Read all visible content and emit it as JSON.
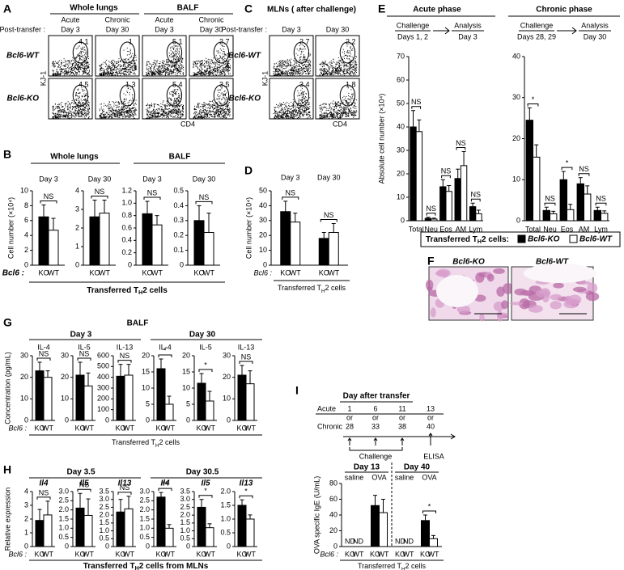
{
  "figure": {
    "letters": [
      "A",
      "B",
      "C",
      "D",
      "E",
      "F",
      "G",
      "H",
      "I"
    ],
    "A": {
      "tissues": [
        "Whole lungs",
        "BALF"
      ],
      "phases": [
        "Acute",
        "Chronic",
        "Acute",
        "Chronic"
      ],
      "post_transfer": "Post-transfer :",
      "days": [
        "Day 3",
        "Day 30",
        "Day 3",
        "Day 30"
      ],
      "rows": [
        "Bcl6-WT",
        "Bcl6-KO"
      ],
      "gates": [
        [
          4.1,
          1.0,
          5.1,
          2.7
        ],
        [
          4.5,
          1.3,
          5.4,
          3.5
        ]
      ],
      "ylabel": "KJ-1",
      "xlabel": "CD4"
    },
    "C": {
      "title": "MLNs ( after challenge)",
      "post_transfer": "Post-transfer :",
      "days": [
        "Day 3",
        "Day 30"
      ],
      "rows": [
        "Bcl6-WT",
        "Bcl6-KO"
      ],
      "gates": [
        [
          2.7,
          2.2
        ],
        [
          3.4,
          1.8
        ]
      ],
      "ylabel": "KJ-1",
      "xlabel": "CD4"
    },
    "B": {
      "tissues": [
        "Whole lungs",
        "BALF"
      ],
      "row": "Bcl6 :",
      "footer": {
        "text": "Transferred T",
        "sub": "H",
        "tail": "2 cells"
      }
    },
    "D": {
      "row": "Bcl6 :",
      "footer": {
        "text": "Transferred T",
        "sub": "H",
        "tail": "2 cells"
      }
    },
    "E": {
      "phases": [
        "Acute phase",
        "Chronic phase"
      ],
      "schemes": [
        {
          "challenge": "Challenge",
          "challenge_days": "Days 1, 2",
          "analysis": "Analysis",
          "analysis_day": "Day 3"
        },
        {
          "challenge": "Challenge",
          "challenge_days": "Days 28, 29",
          "analysis": "Analysis",
          "analysis_day": "Day 30"
        }
      ],
      "legend_title": {
        "text": "Transferred T",
        "sub": "H",
        "tail": "2 cells:"
      }
    },
    "F": {
      "labels": [
        "Bcl6-KO",
        "Bcl6-WT"
      ]
    },
    "G": {
      "title": "BALF",
      "days": [
        "Day 3",
        "Day 30"
      ],
      "row": "Bcl6 :",
      "footer": {
        "text": "Transferred T",
        "sub": "H",
        "tail": "2 cells"
      }
    },
    "H": {
      "days": [
        "Day 3.5",
        "Day 30.5"
      ],
      "row": "Bcl6 :",
      "footer": {
        "text": "Transferred T",
        "sub": "H",
        "tail": "2 cells from MLNs"
      }
    },
    "I": {
      "timeline_title": "Day after transfer",
      "rows": [
        "Acute",
        "Chronic"
      ],
      "acute_days": [
        "1",
        "6",
        "11",
        "13"
      ],
      "chronic_days": [
        "28",
        "33",
        "38",
        "40"
      ],
      "or": "or",
      "challenge": "Challenge",
      "elisa": "ELISA",
      "row": "Bcl6 :",
      "footer": {
        "text": "Transferred T",
        "sub": "H",
        "tail": "2 cells"
      }
    }
  },
  "chart_data": [
    {
      "type": "bar",
      "title": "Day 3",
      "ylabel": "Cell number (×10⁴)",
      "categories": [
        null
      ],
      "bar_labels": true,
      "sig": [
        "NS"
      ],
      "ylim": [
        0,
        10
      ],
      "yticks": [
        0,
        2,
        4,
        6,
        8,
        10
      ],
      "series": [
        {
          "name": "KO",
          "color": "#000000",
          "values": [
            6.5
          ],
          "errors": [
            1.6
          ]
        },
        {
          "name": "WT",
          "color": "#ffffff",
          "values": [
            4.7
          ],
          "errors": [
            1.6
          ]
        }
      ]
    },
    {
      "type": "bar",
      "title": "Day 30",
      "categories": [
        null
      ],
      "bar_labels": true,
      "sig": [
        "NS"
      ],
      "ylim": [
        0,
        4
      ],
      "yticks": [
        0,
        1,
        2,
        3,
        4
      ],
      "series": [
        {
          "name": "KO",
          "color": "#000000",
          "values": [
            2.6
          ],
          "errors": [
            0.9
          ]
        },
        {
          "name": "WT",
          "color": "#ffffff",
          "values": [
            2.8
          ],
          "errors": [
            0.7
          ]
        }
      ]
    },
    {
      "type": "bar",
      "title": "Day 3",
      "categories": [
        null
      ],
      "bar_labels": true,
      "sig": [
        "NS"
      ],
      "ylim": [
        0,
        1.2
      ],
      "yticks": [
        0,
        0.2,
        0.4,
        0.6,
        0.8,
        {
          "value": 1,
          "label": "1.0"
        },
        1.2
      ],
      "series": [
        {
          "name": "KO",
          "color": "#000000",
          "values": [
            0.83
          ],
          "errors": [
            0.2
          ]
        },
        {
          "name": "WT",
          "color": "#ffffff",
          "values": [
            0.65
          ],
          "errors": [
            0.15
          ]
        }
      ]
    },
    {
      "type": "bar",
      "title": "Day 30",
      "categories": [
        null
      ],
      "bar_labels": true,
      "sig": [
        "NS"
      ],
      "ylim": [
        0,
        0.5
      ],
      "yticks": [
        0,
        0.1,
        0.2,
        0.3,
        0.4,
        0.5
      ],
      "series": [
        {
          "name": "KO",
          "color": "#000000",
          "values": [
            0.3
          ],
          "errors": [
            0.1
          ]
        },
        {
          "name": "WT",
          "color": "#ffffff",
          "values": [
            0.22
          ],
          "errors": [
            0.13
          ]
        }
      ]
    },
    {
      "type": "bar",
      "ylabel": "Cell number (×10⁴)",
      "categories": [
        "Day 3",
        "Day 30"
      ],
      "bar_labels": true,
      "sig": [
        "NS",
        "NS"
      ],
      "ylim": [
        0,
        50
      ],
      "yticks": [
        0,
        10,
        20,
        30,
        40,
        50
      ],
      "series": [
        {
          "name": "KO",
          "color": "#000000",
          "values": [
            36,
            18
          ],
          "errors": [
            7,
            4
          ]
        },
        {
          "name": "WT",
          "color": "#ffffff",
          "values": [
            29,
            22
          ],
          "errors": [
            6,
            6
          ]
        }
      ]
    },
    {
      "type": "bar",
      "ylabel": "Absolute cell number (×10⁴)",
      "categories": [
        "Total",
        "Neu",
        "Eos",
        "AM",
        "Lym"
      ],
      "bar_labels": false,
      "legend": true,
      "sig": [
        "NS",
        "NS",
        "NS",
        "NS",
        "NS"
      ],
      "ylim": [
        0,
        70
      ],
      "yticks": [
        0,
        10,
        20,
        30,
        40,
        50,
        60,
        70
      ],
      "series": [
        {
          "name": "Bcl6-KO",
          "color": "#000000",
          "values": [
            40,
            1,
            14.5,
            18,
            6
          ],
          "errors": [
            7,
            0.5,
            3,
            4,
            1.5
          ]
        },
        {
          "name": "Bcl6-WT",
          "color": "#ffffff",
          "values": [
            38,
            0.7,
            12.5,
            23.5,
            3
          ],
          "errors": [
            5,
            0.4,
            2.5,
            6,
            1.5
          ]
        }
      ]
    },
    {
      "type": "bar",
      "categories": [
        "Total",
        "Neu",
        "Eos",
        "AM",
        "Lym"
      ],
      "bar_labels": false,
      "sig": [
        "*",
        "NS",
        "*",
        "NS",
        "NS"
      ],
      "ylim": [
        0,
        40
      ],
      "yticks": [
        0,
        10,
        20,
        30,
        40
      ],
      "series": [
        {
          "name": "Bcl6-KO",
          "color": "#000000",
          "values": [
            24.5,
            2.5,
            10,
            9,
            2.5
          ],
          "errors": [
            3,
            0.8,
            2,
            1.5,
            0.8
          ]
        },
        {
          "name": "Bcl6-WT",
          "color": "#ffffff",
          "values": [
            15.5,
            1.7,
            2.7,
            6.5,
            1.8
          ],
          "errors": [
            3,
            0.6,
            1.3,
            2,
            0.6
          ]
        }
      ]
    },
    {
      "type": "bar",
      "title": "IL-4",
      "ylabel": "Concentration (pg/mL)",
      "categories": [
        null
      ],
      "bar_labels": true,
      "sig": [
        "NS"
      ],
      "ylim": [
        0,
        30
      ],
      "yticks": [
        0,
        10,
        20,
        30
      ],
      "series": [
        {
          "name": "KO",
          "color": "#000000",
          "values": [
            23
          ],
          "errors": [
            4
          ]
        },
        {
          "name": "WT",
          "color": "#ffffff",
          "values": [
            20
          ],
          "errors": [
            3
          ]
        }
      ]
    },
    {
      "type": "bar",
      "title": "IL-5",
      "categories": [
        null
      ],
      "bar_labels": true,
      "sig": [
        "NS"
      ],
      "ylim": [
        0,
        30
      ],
      "yticks": [
        0,
        10,
        20,
        30
      ],
      "series": [
        {
          "name": "KO",
          "color": "#000000",
          "values": [
            21
          ],
          "errors": [
            6
          ]
        },
        {
          "name": "WT",
          "color": "#ffffff",
          "values": [
            16
          ],
          "errors": [
            6
          ]
        }
      ]
    },
    {
      "type": "bar",
      "title": "IL-13",
      "categories": [
        null
      ],
      "bar_labels": true,
      "sig": [
        "NS"
      ],
      "ylim": [
        0,
        600
      ],
      "yticks": [
        0,
        100,
        200,
        300,
        400,
        500,
        600
      ],
      "series": [
        {
          "name": "KO",
          "color": "#000000",
          "values": [
            410
          ],
          "errors": [
            110
          ]
        },
        {
          "name": "WT",
          "color": "#ffffff",
          "values": [
            420
          ],
          "errors": [
            100
          ]
        }
      ]
    },
    {
      "type": "bar",
      "title": "IL-4",
      "categories": [
        null
      ],
      "bar_labels": true,
      "sig": [
        "*"
      ],
      "ylim": [
        0,
        20
      ],
      "yticks": [
        0,
        5,
        10,
        15,
        20
      ],
      "series": [
        {
          "name": "KO",
          "color": "#000000",
          "values": [
            16
          ],
          "errors": [
            3
          ]
        },
        {
          "name": "WT",
          "color": "#ffffff",
          "values": [
            5
          ],
          "errors": [
            2.5
          ]
        }
      ]
    },
    {
      "type": "bar",
      "title": "IL-5",
      "categories": [
        null
      ],
      "bar_labels": true,
      "sig": [
        "*"
      ],
      "ylim": [
        0,
        20
      ],
      "yticks": [
        0,
        5,
        10,
        15,
        20
      ],
      "series": [
        {
          "name": "KO",
          "color": "#000000",
          "values": [
            11.5
          ],
          "errors": [
            3
          ]
        },
        {
          "name": "WT",
          "color": "#ffffff",
          "values": [
            6
          ],
          "errors": [
            3
          ]
        }
      ]
    },
    {
      "type": "bar",
      "title": "IL-13",
      "categories": [
        null
      ],
      "bar_labels": true,
      "sig": [
        "NS"
      ],
      "ylim": [
        0,
        30
      ],
      "yticks": [
        0,
        10,
        20,
        30
      ],
      "series": [
        {
          "name": "KO",
          "color": "#000000",
          "values": [
            21
          ],
          "errors": [
            4.5
          ]
        },
        {
          "name": "WT",
          "color": "#ffffff",
          "values": [
            17
          ],
          "errors": [
            6
          ]
        }
      ]
    },
    {
      "type": "bar",
      "title": "Il4",
      "ylabel": "Relative expression",
      "categories": [
        null
      ],
      "bar_labels": true,
      "sig": [
        "NS"
      ],
      "ylim": [
        0,
        4
      ],
      "yticks": [
        0,
        1,
        2,
        3,
        4
      ],
      "series": [
        {
          "name": "KO",
          "color": "#000000",
          "values": [
            1.9
          ],
          "errors": [
            0.8
          ]
        },
        {
          "name": "WT",
          "color": "#ffffff",
          "values": [
            2.3
          ],
          "errors": [
            1
          ]
        }
      ]
    },
    {
      "type": "bar",
      "title": "Il5",
      "categories": [
        null
      ],
      "bar_labels": true,
      "sig": [
        "NS"
      ],
      "ylim": [
        0,
        3
      ],
      "yticks": [
        0,
        0.5,
        {
          "value": 1,
          "label": "1.0"
        },
        1.5,
        {
          "value": 2,
          "label": "2.0"
        },
        2.5,
        {
          "value": 3,
          "label": "3.0"
        }
      ],
      "series": [
        {
          "name": "KO",
          "color": "#000000",
          "values": [
            2.1
          ],
          "errors": [
            0.8
          ]
        },
        {
          "name": "WT",
          "color": "#ffffff",
          "values": [
            1.7
          ],
          "errors": [
            0.9
          ]
        }
      ]
    },
    {
      "type": "bar",
      "title": "Il13",
      "categories": [
        null
      ],
      "bar_labels": true,
      "sig": [
        "NS"
      ],
      "ylim": [
        0,
        3.5
      ],
      "yticks": [
        0,
        0.5,
        {
          "value": 1,
          "label": "1.0"
        },
        1.5,
        {
          "value": 2,
          "label": "2.0"
        },
        2.5,
        {
          "value": 3,
          "label": "3.0"
        },
        3.5
      ],
      "series": [
        {
          "name": "KO",
          "color": "#000000",
          "values": [
            2.2
          ],
          "errors": [
            0.8
          ]
        },
        {
          "name": "WT",
          "color": "#ffffff",
          "values": [
            2.4
          ],
          "errors": [
            0.8
          ]
        }
      ]
    },
    {
      "type": "bar",
      "title": "Il4",
      "categories": [
        null
      ],
      "bar_labels": true,
      "sig": [
        "**"
      ],
      "ylim": [
        0,
        3
      ],
      "yticks": [
        0,
        0.5,
        {
          "value": 1,
          "label": "1.0"
        },
        1.5,
        {
          "value": 2,
          "label": "2.0"
        },
        2.5,
        {
          "value": 3,
          "label": "3.0"
        }
      ],
      "series": [
        {
          "name": "KO",
          "color": "#000000",
          "values": [
            2.7
          ],
          "errors": [
            0.25
          ]
        },
        {
          "name": "WT",
          "color": "#ffffff",
          "values": [
            1
          ],
          "errors": [
            0.2
          ]
        }
      ]
    },
    {
      "type": "bar",
      "title": "Il5",
      "categories": [
        null
      ],
      "bar_labels": true,
      "sig": [
        "*"
      ],
      "ylim": [
        0,
        3.5
      ],
      "yticks": [
        0,
        0.5,
        {
          "value": 1,
          "label": "1.0"
        },
        1.5,
        {
          "value": 2,
          "label": "2.0"
        },
        2.5,
        {
          "value": 3,
          "label": "3.0"
        },
        3.5
      ],
      "series": [
        {
          "name": "KO",
          "color": "#000000",
          "values": [
            2.5
          ],
          "errors": [
            0.5
          ]
        },
        {
          "name": "WT",
          "color": "#ffffff",
          "values": [
            1.2
          ],
          "errors": [
            0.25
          ]
        }
      ]
    },
    {
      "type": "bar",
      "title": "Il13",
      "categories": [
        null
      ],
      "bar_labels": true,
      "sig": [
        "*"
      ],
      "ylim": [
        0,
        2
      ],
      "yticks": [
        0,
        0.5,
        {
          "value": 1,
          "label": "1.0"
        },
        1.5,
        {
          "value": 2,
          "label": "2.0"
        }
      ],
      "series": [
        {
          "name": "KO",
          "color": "#000000",
          "values": [
            1.5
          ],
          "errors": [
            0.2
          ]
        },
        {
          "name": "WT",
          "color": "#ffffff",
          "values": [
            1
          ],
          "errors": [
            0.15
          ]
        }
      ]
    },
    {
      "type": "bar",
      "ylabel": "OVA specific IgE (U/mL)",
      "groups": [
        "Day 13",
        "Day 40"
      ],
      "categories": [
        "saline",
        "OVA",
        "saline",
        "OVA"
      ],
      "bar_labels": true,
      "sig": [
        null,
        null,
        null,
        "*"
      ],
      "ylim": [
        0,
        80
      ],
      "yticks": [
        0,
        20,
        40,
        60,
        80
      ],
      "series": [
        {
          "name": "KO",
          "color": "#000000",
          "values": [
            null,
            52,
            null,
            33
          ],
          "value_labels": [
            "ND",
            null,
            "ND",
            null
          ],
          "errors": [
            null,
            13,
            null,
            7
          ]
        },
        {
          "name": "WT",
          "color": "#ffffff",
          "values": [
            null,
            43,
            null,
            10
          ],
          "value_labels": [
            "ND",
            null,
            "ND",
            null
          ],
          "errors": [
            null,
            17,
            null,
            4
          ]
        }
      ]
    }
  ]
}
